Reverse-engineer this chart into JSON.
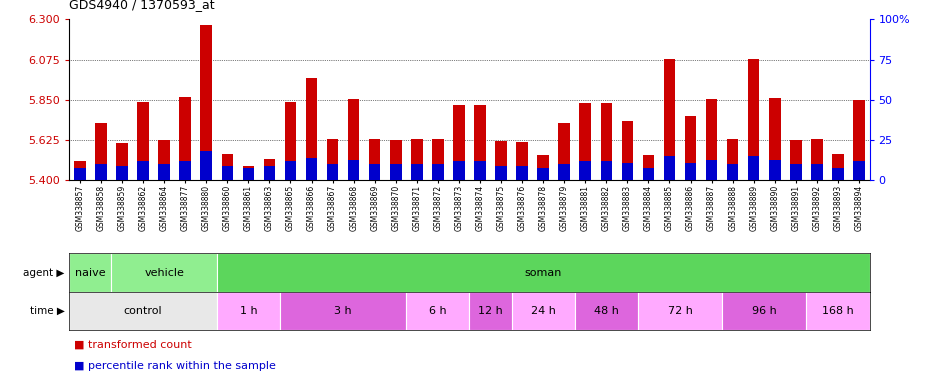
{
  "title": "GDS4940 / 1370593_at",
  "samples": [
    "GSM338857",
    "GSM338858",
    "GSM338859",
    "GSM338862",
    "GSM338864",
    "GSM338877",
    "GSM338880",
    "GSM338860",
    "GSM338861",
    "GSM338863",
    "GSM338865",
    "GSM338866",
    "GSM338867",
    "GSM338868",
    "GSM338869",
    "GSM338870",
    "GSM338871",
    "GSM338872",
    "GSM338873",
    "GSM338874",
    "GSM338875",
    "GSM338876",
    "GSM338878",
    "GSM338879",
    "GSM338881",
    "GSM338882",
    "GSM338883",
    "GSM338884",
    "GSM338885",
    "GSM338886",
    "GSM338887",
    "GSM338888",
    "GSM338889",
    "GSM338890",
    "GSM338891",
    "GSM338892",
    "GSM338893",
    "GSM338894"
  ],
  "red_values": [
    5.51,
    5.72,
    5.61,
    5.84,
    5.625,
    5.865,
    6.27,
    5.545,
    5.48,
    5.52,
    5.84,
    5.97,
    5.63,
    5.855,
    5.63,
    5.625,
    5.63,
    5.63,
    5.82,
    5.82,
    5.62,
    5.615,
    5.54,
    5.72,
    5.83,
    5.83,
    5.73,
    5.54,
    6.08,
    5.76,
    5.855,
    5.63,
    6.08,
    5.86,
    5.625,
    5.63,
    5.55,
    5.85
  ],
  "blue_values": [
    8,
    10,
    9,
    12,
    10,
    12,
    18,
    9,
    8,
    9,
    12,
    14,
    10,
    13,
    10,
    10,
    10,
    10,
    12,
    12,
    9,
    9,
    8,
    10,
    12,
    12,
    11,
    8,
    15,
    11,
    13,
    10,
    15,
    13,
    10,
    10,
    8,
    12
  ],
  "ylim_left": [
    5.4,
    6.3
  ],
  "ylim_right": [
    0,
    100
  ],
  "yticks_left": [
    5.4,
    5.625,
    5.85,
    6.075,
    6.3
  ],
  "yticks_right": [
    0,
    25,
    50,
    75,
    100
  ],
  "bar_bottom": 5.4,
  "agent_data": [
    {
      "label": "naive",
      "start": 0,
      "end": 1,
      "color": "#90ee90"
    },
    {
      "label": "vehicle",
      "start": 2,
      "end": 6,
      "color": "#90ee90"
    },
    {
      "label": "soman",
      "start": 7,
      "end": 37,
      "color": "#5cd65c"
    }
  ],
  "time_groups": [
    {
      "label": "control",
      "start": 0,
      "end": 7,
      "color": "#e8e8e8"
    },
    {
      "label": "1 h",
      "start": 7,
      "end": 10,
      "color": "#ffaaff"
    },
    {
      "label": "3 h",
      "start": 10,
      "end": 16,
      "color": "#dd66dd"
    },
    {
      "label": "6 h",
      "start": 16,
      "end": 19,
      "color": "#ffaaff"
    },
    {
      "label": "12 h",
      "start": 19,
      "end": 21,
      "color": "#dd66dd"
    },
    {
      "label": "24 h",
      "start": 21,
      "end": 24,
      "color": "#ffaaff"
    },
    {
      "label": "48 h",
      "start": 24,
      "end": 27,
      "color": "#dd66dd"
    },
    {
      "label": "72 h",
      "start": 27,
      "end": 31,
      "color": "#ffaaff"
    },
    {
      "label": "96 h",
      "start": 31,
      "end": 35,
      "color": "#dd66dd"
    },
    {
      "label": "168 h",
      "start": 35,
      "end": 38,
      "color": "#ffaaff"
    }
  ],
  "red_color": "#cc0000",
  "blue_color": "#0000cc",
  "bg_color": "#ffffff",
  "left_axis_color": "#cc0000",
  "right_axis_color": "#0000ff",
  "bar_width": 0.55
}
